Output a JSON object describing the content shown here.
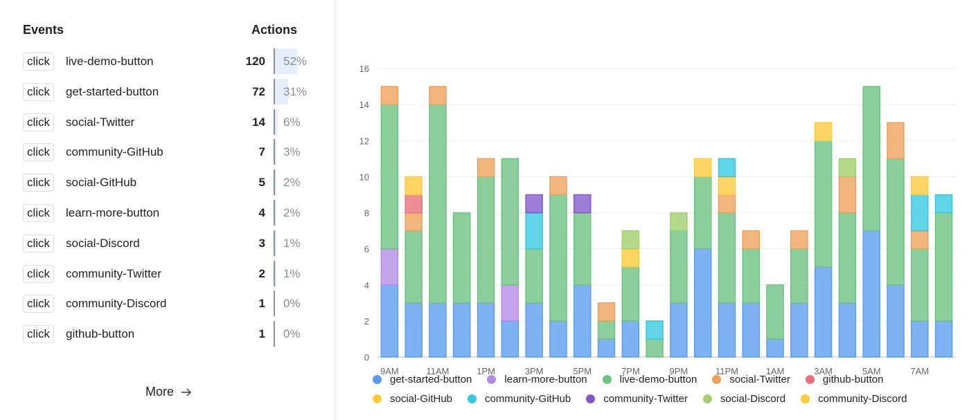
{
  "events_panel": {
    "header_events": "Events",
    "header_actions": "Actions",
    "rows": [
      {
        "type": "click",
        "name": "live-demo-button",
        "count": "120",
        "percent": "52%",
        "share": 0.52
      },
      {
        "type": "click",
        "name": "get-started-button",
        "count": "72",
        "percent": "31%",
        "share": 0.31
      },
      {
        "type": "click",
        "name": "social-Twitter",
        "count": "14",
        "percent": "6%",
        "share": 0.06
      },
      {
        "type": "click",
        "name": "community-GitHub",
        "count": "7",
        "percent": "3%",
        "share": 0.03
      },
      {
        "type": "click",
        "name": "social-GitHub",
        "count": "5",
        "percent": "2%",
        "share": 0.02
      },
      {
        "type": "click",
        "name": "learn-more-button",
        "count": "4",
        "percent": "2%",
        "share": 0.02
      },
      {
        "type": "click",
        "name": "social-Discord",
        "count": "3",
        "percent": "1%",
        "share": 0.01
      },
      {
        "type": "click",
        "name": "community-Twitter",
        "count": "2",
        "percent": "1%",
        "share": 0.01
      },
      {
        "type": "click",
        "name": "community-Discord",
        "count": "1",
        "percent": "0%",
        "share": 0.0
      },
      {
        "type": "click",
        "name": "github-button",
        "count": "1",
        "percent": "0%",
        "share": 0.0
      }
    ],
    "more_label": "More",
    "more_icon": "arrow-right-icon"
  },
  "colors": {
    "get-started-button": "#5b9cf0",
    "learn-more-button": "#b48be6",
    "live-demo-button": "#6cc282",
    "social-Twitter": "#eea05a",
    "github-button": "#e8707a",
    "social-GitHub": "#fccb3a",
    "community-GitHub": "#35c8e0",
    "community-Twitter": "#8058cc",
    "social-Discord": "#a2d06a",
    "community-Discord": "#fccb3a"
  },
  "chart_data": {
    "type": "bar",
    "stacked": true,
    "title": "",
    "xlabel": "",
    "ylabel": "",
    "ylim": [
      0,
      16
    ],
    "yticks": [
      0,
      2,
      4,
      6,
      8,
      10,
      12,
      14,
      16
    ],
    "grid": true,
    "legend_position": "bottom",
    "categories": [
      "9AM",
      "10AM",
      "11AM",
      "12PM",
      "1PM",
      "2PM",
      "3PM",
      "4PM",
      "5PM",
      "6PM",
      "7PM",
      "8PM",
      "9PM",
      "10PM",
      "11PM",
      "12AM",
      "1AM",
      "2AM",
      "3AM",
      "4AM",
      "5AM",
      "6AM",
      "7AM",
      "8AM"
    ],
    "xtick_labels": [
      "9AM",
      "",
      "11AM",
      "",
      "1PM",
      "",
      "3PM",
      "",
      "5PM",
      "",
      "7PM",
      "",
      "9PM",
      "",
      "11PM",
      "",
      "1AM",
      "",
      "3AM",
      "",
      "5AM",
      "",
      "7AM",
      ""
    ],
    "series": [
      {
        "name": "get-started-button",
        "values": [
          4,
          3,
          3,
          3,
          3,
          2,
          3,
          2,
          4,
          1,
          2,
          0,
          3,
          6,
          3,
          3,
          1,
          3,
          5,
          3,
          7,
          4,
          2,
          2
        ]
      },
      {
        "name": "learn-more-button",
        "values": [
          2,
          0,
          0,
          0,
          0,
          2,
          0,
          0,
          0,
          0,
          0,
          0,
          0,
          0,
          0,
          0,
          0,
          0,
          0,
          0,
          0,
          0,
          0,
          0
        ]
      },
      {
        "name": "live-demo-button",
        "values": [
          8,
          4,
          11,
          5,
          7,
          7,
          3,
          7,
          4,
          1,
          3,
          1,
          4,
          4,
          5,
          3,
          3,
          3,
          7,
          5,
          8,
          7,
          4,
          6
        ]
      },
      {
        "name": "social-Twitter",
        "values": [
          1,
          1,
          1,
          0,
          1,
          0,
          0,
          1,
          0,
          1,
          0,
          0,
          0,
          0,
          1,
          1,
          0,
          1,
          0,
          2,
          0,
          2,
          1,
          0
        ]
      },
      {
        "name": "github-button",
        "values": [
          0,
          1,
          0,
          0,
          0,
          0,
          0,
          0,
          0,
          0,
          0,
          0,
          0,
          0,
          0,
          0,
          0,
          0,
          0,
          0,
          0,
          0,
          0,
          0
        ]
      },
      {
        "name": "social-GitHub",
        "values": [
          0,
          1,
          0,
          0,
          0,
          0,
          0,
          0,
          0,
          0,
          1,
          0,
          0,
          1,
          1,
          0,
          0,
          0,
          1,
          0,
          0,
          0,
          0,
          0
        ]
      },
      {
        "name": "community-GitHub",
        "values": [
          0,
          0,
          0,
          0,
          0,
          0,
          2,
          0,
          0,
          0,
          0,
          1,
          0,
          0,
          1,
          0,
          0,
          0,
          0,
          0,
          0,
          0,
          2,
          1
        ]
      },
      {
        "name": "community-Twitter",
        "values": [
          0,
          0,
          0,
          0,
          0,
          0,
          1,
          0,
          1,
          0,
          0,
          0,
          0,
          0,
          0,
          0,
          0,
          0,
          0,
          0,
          0,
          0,
          0,
          0
        ]
      },
      {
        "name": "social-Discord",
        "values": [
          0,
          0,
          0,
          0,
          0,
          0,
          0,
          0,
          0,
          0,
          1,
          0,
          1,
          0,
          0,
          0,
          0,
          0,
          0,
          1,
          0,
          0,
          0,
          0
        ]
      },
      {
        "name": "community-Discord",
        "values": [
          0,
          0,
          0,
          0,
          0,
          0,
          0,
          0,
          0,
          0,
          0,
          0,
          0,
          0,
          0,
          0,
          0,
          0,
          0,
          0,
          0,
          0,
          1,
          0
        ]
      }
    ]
  }
}
